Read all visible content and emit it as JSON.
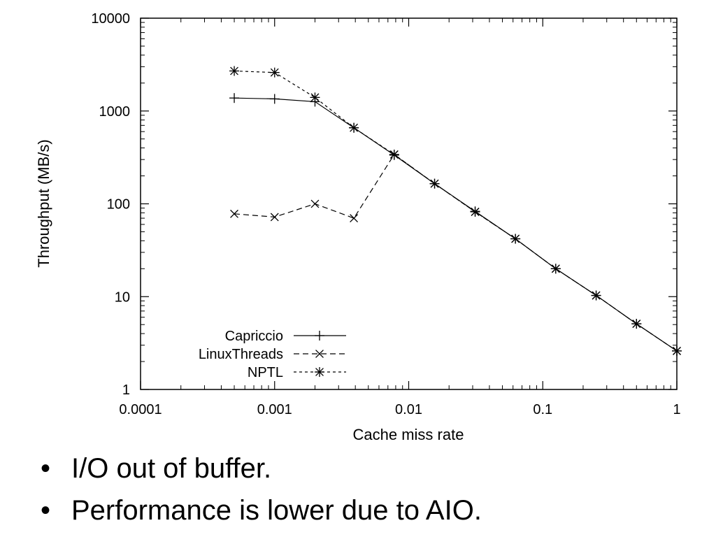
{
  "chart_data": {
    "type": "line",
    "title": "",
    "xlabel": "Cache miss rate",
    "ylabel": "Throughput (MB/s)",
    "xscale": "log",
    "yscale": "log",
    "xlim": [
      0.0001,
      1
    ],
    "ylim": [
      1,
      10000
    ],
    "xticks": [
      "0.0001",
      "0.001",
      "0.01",
      "0.1",
      "1"
    ],
    "yticks": [
      "1",
      "10",
      "100",
      "1000",
      "10000"
    ],
    "grid": false,
    "legend_position": "bottom-left",
    "series": [
      {
        "name": "Capriccio",
        "marker": "plus",
        "dash": "solid",
        "x": [
          0.0005,
          0.001,
          0.002,
          0.0039,
          0.0078,
          0.0156,
          0.0313,
          0.0625,
          0.125,
          0.25,
          0.5,
          1
        ],
        "y": [
          1380,
          1350,
          1260,
          660,
          335,
          165,
          83,
          42,
          20,
          10.3,
          5.1,
          2.6
        ]
      },
      {
        "name": "LinuxThreads",
        "marker": "x",
        "dash": "dashed",
        "x": [
          0.0005,
          0.001,
          0.002,
          0.0039,
          0.0078,
          0.0156,
          0.0313,
          0.0625,
          0.125,
          0.25,
          0.5,
          1
        ],
        "y": [
          78,
          72,
          100,
          70,
          340,
          165,
          82,
          42,
          20,
          10.3,
          5.1,
          2.6
        ]
      },
      {
        "name": "NPTL",
        "marker": "asterisk",
        "dash": "dotted",
        "x": [
          0.0005,
          0.001,
          0.002,
          0.0039,
          0.0078,
          0.0156,
          0.0313,
          0.0625,
          0.125,
          0.25,
          0.5,
          1
        ],
        "y": [
          2700,
          2600,
          1400,
          660,
          340,
          165,
          82,
          42,
          20,
          10.3,
          5.1,
          2.6
        ]
      }
    ]
  },
  "bullets": [
    {
      "symbol": "•",
      "text": "I/O out of buffer."
    },
    {
      "symbol": "•",
      "text": "Performance is lower due to AIO."
    }
  ]
}
